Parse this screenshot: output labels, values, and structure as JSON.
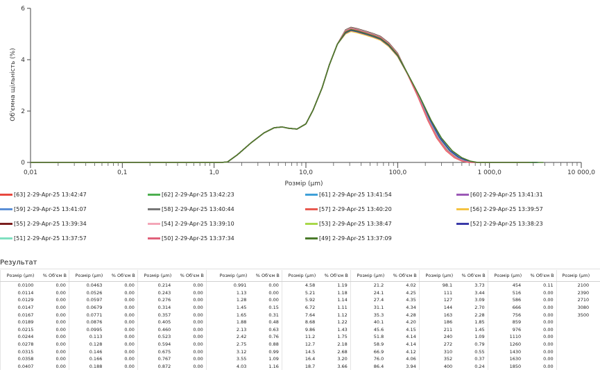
{
  "chart_data": {
    "type": "line",
    "xlabel": "Розмір (µm)",
    "ylabel": "Об'ємна щільність (%)",
    "x_scale": "log",
    "xlim": [
      0.01,
      10000
    ],
    "ylim": [
      0,
      6
    ],
    "x_ticks": [
      {
        "value": 0.01,
        "label": "0,01"
      },
      {
        "value": 0.1,
        "label": "0,1"
      },
      {
        "value": 1,
        "label": "1,0"
      },
      {
        "value": 10,
        "label": "10,0"
      },
      {
        "value": 100,
        "label": "100,0"
      },
      {
        "value": 1000,
        "label": "1 000,0"
      },
      {
        "value": 10000,
        "label": "10 000,0"
      }
    ],
    "y_ticks": [
      {
        "value": 0,
        "label": "0"
      },
      {
        "value": 2,
        "label": "2"
      },
      {
        "value": 4,
        "label": "4"
      },
      {
        "value": 6,
        "label": "6"
      }
    ],
    "series": [
      {
        "name": "[63] 2-29-Apr-25 13:42:47",
        "color": "#e8483f",
        "dy": 0.0,
        "tail": 0.94
      },
      {
        "name": "[62] 2-29-Apr-25 13:42:23",
        "color": "#4caf50",
        "dy": -0.04,
        "tail": 1.0
      },
      {
        "name": "[61] 2-29-Apr-25 13:41:54",
        "color": "#3fa0d8",
        "dy": -0.08,
        "tail": 1.04
      },
      {
        "name": "[60] 2-29-Apr-25 13:41:31",
        "color": "#9b59b6",
        "dy": 0.03,
        "tail": 0.98
      },
      {
        "name": "[59] 2-29-Apr-25 13:41:07",
        "color": "#5b8fd6",
        "dy": -0.02,
        "tail": 1.02
      },
      {
        "name": "[58] 2-29-Apr-25 13:40:44",
        "color": "#777777",
        "dy": 0.02,
        "tail": 0.99
      },
      {
        "name": "[57] 2-29-Apr-25 13:40:20",
        "color": "#e85a50",
        "dy": 0.05,
        "tail": 0.95
      },
      {
        "name": "[56] 2-29-Apr-25 13:39:57",
        "color": "#f5c342",
        "dy": -0.1,
        "tail": 0.97
      },
      {
        "name": "[55] 2-29-Apr-25 13:39:34",
        "color": "#7b1e1e",
        "dy": 0.06,
        "tail": 1.0
      },
      {
        "name": "[54] 2-29-Apr-25 13:39:10",
        "color": "#f4a6b8",
        "dy": 0.01,
        "tail": 0.96
      },
      {
        "name": "[53] 2-29-Apr-25 13:38:47",
        "color": "#a8d84a",
        "dy": -0.05,
        "tail": 1.01
      },
      {
        "name": "[52] 2-29-Apr-25 13:38:23",
        "color": "#3a3aa8",
        "dy": -0.06,
        "tail": 1.03
      },
      {
        "name": "[51] 2-29-Apr-25 13:37:57",
        "color": "#7fe0c0",
        "dy": 0.04,
        "tail": 0.99
      },
      {
        "name": "[50] 2-29-Apr-25 13:37:34",
        "color": "#e0607a",
        "dy": 0.02,
        "tail": 0.97
      },
      {
        "name": "[49] 2-29-Apr-25 13:37:09",
        "color": "#4a7a2a",
        "dy": -0.03,
        "tail": 1.08
      }
    ],
    "base_curve": [
      [
        0.01,
        0.0
      ],
      [
        1.2,
        0.0
      ],
      [
        1.4,
        0.02
      ],
      [
        1.8,
        0.3
      ],
      [
        2.5,
        0.75
      ],
      [
        3.5,
        1.15
      ],
      [
        4.5,
        1.35
      ],
      [
        5.5,
        1.38
      ],
      [
        6.5,
        1.33
      ],
      [
        8,
        1.3
      ],
      [
        10,
        1.5
      ],
      [
        12,
        2.05
      ],
      [
        15,
        2.9
      ],
      [
        18,
        3.8
      ],
      [
        22,
        4.6
      ],
      [
        27,
        5.1
      ],
      [
        31,
        5.2
      ],
      [
        36,
        5.15
      ],
      [
        45,
        5.05
      ],
      [
        55,
        4.95
      ],
      [
        65,
        4.85
      ],
      [
        80,
        4.6
      ],
      [
        100,
        4.2
      ],
      [
        130,
        3.4
      ],
      [
        170,
        2.55
      ],
      [
        220,
        1.65
      ],
      [
        280,
        0.95
      ],
      [
        360,
        0.45
      ],
      [
        450,
        0.18
      ],
      [
        550,
        0.05
      ],
      [
        650,
        0.0
      ],
      [
        3000,
        0.0
      ]
    ]
  },
  "results": {
    "title": "Результат",
    "columns": [
      {
        "size": "Розмір (µm)",
        "vol": "% Об'єм В"
      },
      {
        "size": "Розмір (µm)",
        "vol": "% Об'єм В"
      },
      {
        "size": "Розмір (µm)",
        "vol": "% Об'єм В"
      },
      {
        "size": "Розмір (µm)",
        "vol": "% Об'єм В"
      },
      {
        "size": "Розмір (µm)",
        "vol": "% Об'єм В"
      },
      {
        "size": "Розмір (µm)",
        "vol": "% Об'єм В"
      },
      {
        "size": "Розмір (µm)",
        "vol": "% Об'єм В"
      },
      {
        "size": "Розмір (µm)",
        "vol": "% Об'єм В"
      },
      {
        "size": "Розмір (µm)",
        "vol": ""
      }
    ],
    "rows": [
      [
        "0.0100",
        "0.00",
        "0.0463",
        "0.00",
        "0.214",
        "0.00",
        "0.991",
        "0.00",
        "4.58",
        "1.19",
        "21.2",
        "4.02",
        "98.1",
        "3.73",
        "454",
        "0.11",
        "2100",
        ""
      ],
      [
        "0.0114",
        "0.00",
        "0.0526",
        "0.00",
        "0.243",
        "0.00",
        "1.13",
        "0.00",
        "5.21",
        "1.18",
        "24.1",
        "4.25",
        "111",
        "3.44",
        "516",
        "0.00",
        "2390",
        ""
      ],
      [
        "0.0129",
        "0.00",
        "0.0597",
        "0.00",
        "0.276",
        "0.00",
        "1.28",
        "0.00",
        "5.92",
        "1.14",
        "27.4",
        "4.35",
        "127",
        "3.09",
        "586",
        "0.00",
        "2710",
        ""
      ],
      [
        "0.0147",
        "0.00",
        "0.0679",
        "0.00",
        "0.314",
        "0.00",
        "1.45",
        "0.15",
        "6.72",
        "1.11",
        "31.1",
        "4.34",
        "144",
        "2.70",
        "666",
        "0.00",
        "3080",
        ""
      ],
      [
        "0.0167",
        "0.00",
        "0.0771",
        "0.00",
        "0.357",
        "0.00",
        "1.65",
        "0.31",
        "7.64",
        "1.12",
        "35.3",
        "4.28",
        "163",
        "2.28",
        "756",
        "0.00",
        "3500",
        ""
      ],
      [
        "0.0189",
        "0.00",
        "0.0876",
        "0.00",
        "0.405",
        "0.00",
        "1.88",
        "0.48",
        "8.68",
        "1.22",
        "40.1",
        "4.20",
        "186",
        "1.85",
        "859",
        "0.00",
        "",
        ""
      ],
      [
        "0.0215",
        "0.00",
        "0.0995",
        "0.00",
        "0.460",
        "0.00",
        "2.13",
        "0.63",
        "9.86",
        "1.43",
        "45.6",
        "4.15",
        "211",
        "1.45",
        "976",
        "0.00",
        "",
        ""
      ],
      [
        "0.0244",
        "0.00",
        "0.113",
        "0.00",
        "0.523",
        "0.00",
        "2.42",
        "0.76",
        "11.2",
        "1.75",
        "51.8",
        "4.14",
        "240",
        "1.09",
        "1110",
        "0.00",
        "",
        ""
      ],
      [
        "0.0278",
        "0.00",
        "0.128",
        "0.00",
        "0.594",
        "0.00",
        "2.75",
        "0.88",
        "12.7",
        "2.18",
        "58.9",
        "4.14",
        "272",
        "0.79",
        "1260",
        "0.00",
        "",
        ""
      ],
      [
        "0.0315",
        "0.00",
        "0.146",
        "0.00",
        "0.675",
        "0.00",
        "3.12",
        "0.99",
        "14.5",
        "2.68",
        "66.9",
        "4.12",
        "310",
        "0.55",
        "1430",
        "0.00",
        "",
        ""
      ],
      [
        "0.0358",
        "0.00",
        "0.166",
        "0.00",
        "0.767",
        "0.00",
        "3.55",
        "1.09",
        "16.4",
        "3.20",
        "76.0",
        "4.06",
        "352",
        "0.37",
        "1630",
        "0.00",
        "",
        ""
      ],
      [
        "0.0407",
        "0.00",
        "0.188",
        "0.00",
        "0.872",
        "0.00",
        "4.03",
        "1.16",
        "18.7",
        "3.66",
        "86.4",
        "3.94",
        "400",
        "0.24",
        "1850",
        "0.00",
        "",
        ""
      ]
    ]
  }
}
